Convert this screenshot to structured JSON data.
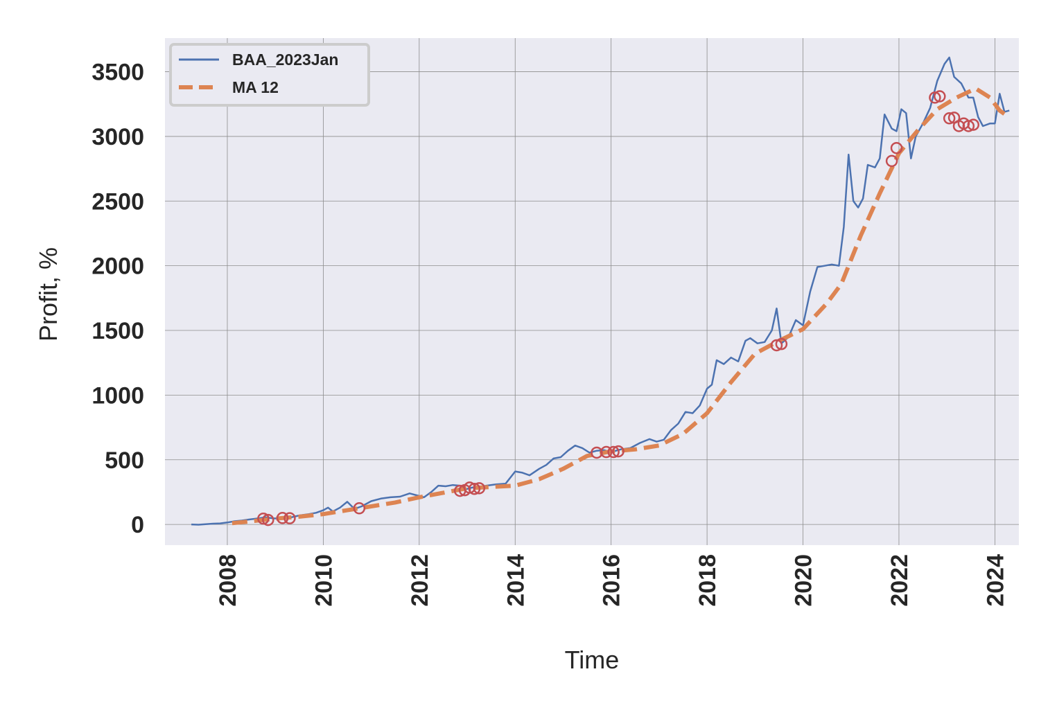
{
  "chart_data": {
    "type": "line",
    "xlabel": "Time",
    "ylabel": "Profit, %",
    "xlim": [
      2006.7,
      2024.5
    ],
    "ylim": [
      -160,
      3760
    ],
    "x_ticks": [
      2008,
      2010,
      2012,
      2014,
      2016,
      2018,
      2020,
      2022,
      2024
    ],
    "x_tick_labels": [
      "2008",
      "2010",
      "2012",
      "2014",
      "2016",
      "2018",
      "2020",
      "2022",
      "2024"
    ],
    "y_ticks": [
      0,
      500,
      1000,
      1500,
      2000,
      2500,
      3000,
      3500
    ],
    "y_tick_labels": [
      "0",
      "500",
      "1000",
      "1500",
      "2000",
      "2500",
      "3000",
      "3500"
    ],
    "grid": true,
    "legend_position": "top-left",
    "colors": {
      "background": "#eaeaf2",
      "grid": "#8c8c8c",
      "series1": "#4c72b0",
      "series2": "#dd8452",
      "markers": "#c44e52"
    },
    "series": [
      {
        "name": "BAA_2023Jan",
        "style": "solid",
        "points": [
          [
            2007.25,
            0
          ],
          [
            2007.4,
            -2
          ],
          [
            2007.55,
            2
          ],
          [
            2007.7,
            6
          ],
          [
            2007.85,
            8
          ],
          [
            2008.0,
            15
          ],
          [
            2008.15,
            25
          ],
          [
            2008.3,
            30
          ],
          [
            2008.45,
            38
          ],
          [
            2008.6,
            45
          ],
          [
            2008.8,
            55
          ],
          [
            2008.95,
            48
          ],
          [
            2009.1,
            45
          ],
          [
            2009.3,
            52
          ],
          [
            2009.5,
            70
          ],
          [
            2009.7,
            80
          ],
          [
            2009.85,
            90
          ],
          [
            2010.0,
            110
          ],
          [
            2010.1,
            130
          ],
          [
            2010.2,
            100
          ],
          [
            2010.35,
            130
          ],
          [
            2010.5,
            175
          ],
          [
            2010.65,
            120
          ],
          [
            2010.8,
            140
          ],
          [
            2011.0,
            180
          ],
          [
            2011.2,
            200
          ],
          [
            2011.4,
            210
          ],
          [
            2011.6,
            215
          ],
          [
            2011.8,
            240
          ],
          [
            2012.0,
            220
          ],
          [
            2012.1,
            210
          ],
          [
            2012.25,
            250
          ],
          [
            2012.4,
            300
          ],
          [
            2012.55,
            295
          ],
          [
            2012.7,
            305
          ],
          [
            2012.85,
            300
          ],
          [
            2012.95,
            270
          ],
          [
            2013.1,
            285
          ],
          [
            2013.25,
            290
          ],
          [
            2013.4,
            300
          ],
          [
            2013.6,
            310
          ],
          [
            2013.8,
            315
          ],
          [
            2014.0,
            410
          ],
          [
            2014.15,
            400
          ],
          [
            2014.3,
            380
          ],
          [
            2014.5,
            430
          ],
          [
            2014.65,
            460
          ],
          [
            2014.8,
            510
          ],
          [
            2014.95,
            520
          ],
          [
            2015.1,
            570
          ],
          [
            2015.25,
            610
          ],
          [
            2015.4,
            590
          ],
          [
            2015.55,
            555
          ],
          [
            2015.7,
            570
          ],
          [
            2015.85,
            575
          ],
          [
            2016.0,
            560
          ],
          [
            2016.2,
            580
          ],
          [
            2016.4,
            590
          ],
          [
            2016.6,
            630
          ],
          [
            2016.8,
            660
          ],
          [
            2016.95,
            640
          ],
          [
            2017.1,
            655
          ],
          [
            2017.25,
            730
          ],
          [
            2017.4,
            780
          ],
          [
            2017.55,
            870
          ],
          [
            2017.7,
            860
          ],
          [
            2017.85,
            920
          ],
          [
            2018.0,
            1050
          ],
          [
            2018.1,
            1080
          ],
          [
            2018.2,
            1270
          ],
          [
            2018.35,
            1240
          ],
          [
            2018.5,
            1290
          ],
          [
            2018.65,
            1260
          ],
          [
            2018.8,
            1420
          ],
          [
            2018.9,
            1440
          ],
          [
            2019.05,
            1400
          ],
          [
            2019.2,
            1410
          ],
          [
            2019.35,
            1500
          ],
          [
            2019.45,
            1670
          ],
          [
            2019.55,
            1400
          ],
          [
            2019.7,
            1450
          ],
          [
            2019.85,
            1580
          ],
          [
            2020.0,
            1540
          ],
          [
            2020.15,
            1800
          ],
          [
            2020.3,
            1990
          ],
          [
            2020.45,
            2000
          ],
          [
            2020.6,
            2010
          ],
          [
            2020.75,
            2000
          ],
          [
            2020.85,
            2300
          ],
          [
            2020.95,
            2860
          ],
          [
            2021.05,
            2500
          ],
          [
            2021.15,
            2450
          ],
          [
            2021.25,
            2520
          ],
          [
            2021.35,
            2780
          ],
          [
            2021.5,
            2760
          ],
          [
            2021.6,
            2830
          ],
          [
            2021.7,
            3170
          ],
          [
            2021.85,
            3060
          ],
          [
            2021.95,
            3040
          ],
          [
            2022.05,
            3210
          ],
          [
            2022.15,
            3180
          ],
          [
            2022.25,
            2830
          ],
          [
            2022.35,
            3000
          ],
          [
            2022.5,
            3100
          ],
          [
            2022.65,
            3220
          ],
          [
            2022.8,
            3430
          ],
          [
            2022.95,
            3560
          ],
          [
            2023.05,
            3610
          ],
          [
            2023.15,
            3460
          ],
          [
            2023.3,
            3410
          ],
          [
            2023.45,
            3300
          ],
          [
            2023.55,
            3300
          ],
          [
            2023.65,
            3150
          ],
          [
            2023.75,
            3080
          ],
          [
            2023.9,
            3100
          ],
          [
            2024.0,
            3100
          ],
          [
            2024.1,
            3330
          ],
          [
            2024.2,
            3190
          ],
          [
            2024.3,
            3200
          ]
        ]
      },
      {
        "name": "MA 12",
        "style": "dashed",
        "points": [
          [
            2008.1,
            10
          ],
          [
            2008.5,
            25
          ],
          [
            2009.0,
            45
          ],
          [
            2009.5,
            60
          ],
          [
            2010.0,
            80
          ],
          [
            2010.5,
            110
          ],
          [
            2011.0,
            140
          ],
          [
            2011.5,
            170
          ],
          [
            2012.0,
            210
          ],
          [
            2012.5,
            245
          ],
          [
            2013.0,
            280
          ],
          [
            2013.5,
            290
          ],
          [
            2014.0,
            300
          ],
          [
            2014.5,
            350
          ],
          [
            2015.0,
            430
          ],
          [
            2015.5,
            530
          ],
          [
            2016.0,
            565
          ],
          [
            2016.5,
            580
          ],
          [
            2017.0,
            610
          ],
          [
            2017.5,
            700
          ],
          [
            2018.0,
            860
          ],
          [
            2018.5,
            1100
          ],
          [
            2019.0,
            1320
          ],
          [
            2019.5,
            1420
          ],
          [
            2020.0,
            1510
          ],
          [
            2020.5,
            1710
          ],
          [
            2020.8,
            1860
          ],
          [
            2021.2,
            2230
          ],
          [
            2021.6,
            2560
          ],
          [
            2022.0,
            2870
          ],
          [
            2022.4,
            3050
          ],
          [
            2022.8,
            3210
          ],
          [
            2023.2,
            3300
          ],
          [
            2023.6,
            3370
          ],
          [
            2023.9,
            3300
          ],
          [
            2024.1,
            3200
          ],
          [
            2024.25,
            3160
          ]
        ]
      }
    ],
    "markers": [
      [
        2008.75,
        45
      ],
      [
        2008.85,
        35
      ],
      [
        2009.15,
        50
      ],
      [
        2009.3,
        48
      ],
      [
        2010.75,
        125
      ],
      [
        2012.85,
        260
      ],
      [
        2012.95,
        265
      ],
      [
        2013.05,
        285
      ],
      [
        2013.15,
        275
      ],
      [
        2013.25,
        280
      ],
      [
        2015.7,
        555
      ],
      [
        2015.9,
        560
      ],
      [
        2016.05,
        560
      ],
      [
        2016.15,
        565
      ],
      [
        2019.45,
        1385
      ],
      [
        2019.55,
        1395
      ],
      [
        2021.85,
        2810
      ],
      [
        2021.95,
        2910
      ],
      [
        2022.75,
        3300
      ],
      [
        2022.85,
        3310
      ],
      [
        2023.05,
        3140
      ],
      [
        2023.15,
        3145
      ],
      [
        2023.25,
        3080
      ],
      [
        2023.35,
        3100
      ],
      [
        2023.45,
        3080
      ],
      [
        2023.55,
        3090
      ]
    ]
  }
}
